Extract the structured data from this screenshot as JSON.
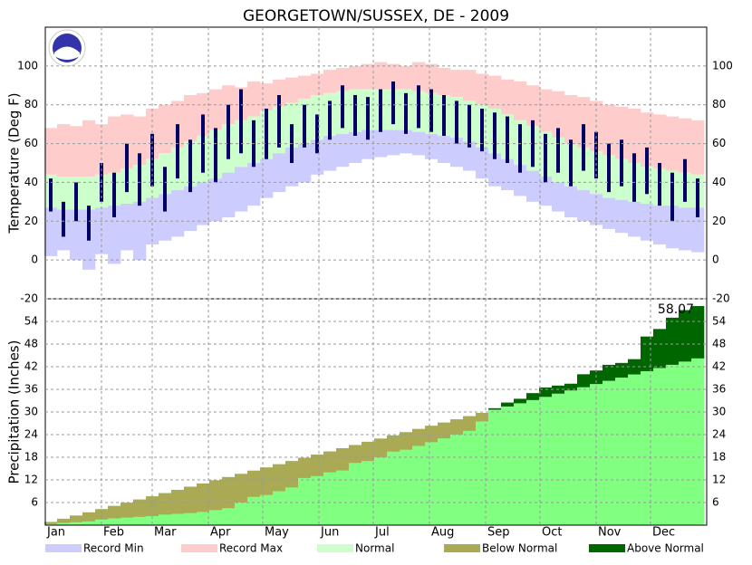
{
  "chart_data": [
    {
      "type": "range",
      "title": "GEORGETOWN/SUSSEX, DE - 2009",
      "y_label": "Temperature (Deg F)",
      "x": [
        4,
        11,
        18,
        25,
        32,
        39,
        46,
        53,
        60,
        67,
        74,
        81,
        88,
        95,
        102,
        109,
        116,
        123,
        130,
        137,
        144,
        151,
        158,
        165,
        172,
        179,
        186,
        193,
        200,
        207,
        214,
        221,
        228,
        235,
        242,
        249,
        256,
        263,
        270,
        277,
        284,
        291,
        298,
        305,
        312,
        319,
        326,
        333,
        340,
        347,
        354,
        361
      ],
      "xlim": [
        1,
        366
      ],
      "xticks": [
        1,
        32,
        60,
        91,
        121,
        152,
        182,
        213,
        244,
        274,
        305,
        335
      ],
      "ylim": [
        -20,
        120
      ],
      "yticks": [
        -20,
        0,
        20,
        40,
        60,
        80,
        100
      ],
      "record_max": [
        68,
        70,
        69,
        72,
        70,
        74,
        75,
        74,
        78,
        80,
        82,
        85,
        86,
        88,
        90,
        89,
        92,
        91,
        93,
        94,
        95,
        96,
        98,
        99,
        100,
        101,
        102,
        101,
        100,
        102,
        101,
        99,
        98,
        98,
        96,
        95,
        93,
        92,
        90,
        88,
        87,
        85,
        84,
        82,
        80,
        79,
        78,
        76,
        75,
        74,
        73,
        72
      ],
      "record_min": [
        2,
        5,
        0,
        -5,
        3,
        -2,
        5,
        0,
        8,
        10,
        12,
        15,
        18,
        20,
        22,
        25,
        28,
        32,
        35,
        38,
        40,
        44,
        46,
        48,
        50,
        52,
        53,
        54,
        55,
        54,
        52,
        50,
        48,
        46,
        42,
        38,
        36,
        33,
        30,
        28,
        25,
        22,
        20,
        18,
        16,
        14,
        12,
        10,
        8,
        6,
        5,
        4
      ],
      "normal_high": [
        44,
        43,
        43,
        43,
        44,
        45,
        47,
        49,
        52,
        55,
        58,
        61,
        64,
        67,
        70,
        72,
        74,
        77,
        79,
        81,
        83,
        85,
        86,
        87,
        88,
        88,
        88,
        88,
        88,
        87,
        86,
        85,
        84,
        82,
        80,
        78,
        75,
        72,
        69,
        66,
        63,
        60,
        58,
        56,
        54,
        52,
        50,
        48,
        47,
        46,
        45,
        44
      ],
      "normal_low": [
        27,
        26,
        26,
        26,
        27,
        28,
        29,
        30,
        32,
        34,
        36,
        38,
        40,
        42,
        45,
        48,
        50,
        52,
        55,
        58,
        60,
        62,
        64,
        65,
        66,
        67,
        67,
        67,
        67,
        66,
        65,
        64,
        63,
        61,
        58,
        55,
        52,
        49,
        46,
        43,
        40,
        38,
        36,
        34,
        32,
        31,
        30,
        29,
        28,
        28,
        27,
        27
      ],
      "observed_high": [
        42,
        30,
        40,
        28,
        50,
        45,
        60,
        55,
        65,
        48,
        70,
        62,
        75,
        68,
        80,
        88,
        72,
        78,
        85,
        70,
        80,
        75,
        82,
        90,
        85,
        84,
        88,
        92,
        86,
        90,
        88,
        85,
        82,
        80,
        78,
        76,
        74,
        70,
        72,
        65,
        68,
        62,
        70,
        66,
        60,
        62,
        55,
        58,
        50,
        45,
        52,
        42
      ],
      "observed_low": [
        25,
        12,
        20,
        10,
        30,
        22,
        35,
        28,
        38,
        25,
        42,
        35,
        45,
        40,
        52,
        55,
        48,
        52,
        58,
        50,
        58,
        55,
        62,
        68,
        64,
        62,
        66,
        70,
        65,
        68,
        66,
        64,
        60,
        58,
        56,
        52,
        50,
        45,
        48,
        40,
        45,
        38,
        46,
        42,
        35,
        38,
        30,
        34,
        28,
        20,
        30,
        22
      ],
      "observed_color": "#000066",
      "grid": true
    },
    {
      "type": "area",
      "y_label": "Precipitation (Inches)",
      "annotation": "58.07",
      "x": [
        4,
        11,
        18,
        25,
        32,
        39,
        46,
        53,
        60,
        67,
        74,
        81,
        88,
        95,
        102,
        109,
        116,
        123,
        130,
        137,
        144,
        151,
        158,
        165,
        172,
        179,
        186,
        193,
        200,
        207,
        214,
        221,
        228,
        235,
        242,
        249,
        256,
        263,
        270,
        277,
        284,
        291,
        298,
        305,
        312,
        319,
        326,
        333,
        340,
        347,
        354,
        361
      ],
      "xlim": [
        1,
        366
      ],
      "xticks": [
        {
          "value": 1,
          "label": "Jan"
        },
        {
          "value": 32,
          "label": "Feb"
        },
        {
          "value": 60,
          "label": "Mar"
        },
        {
          "value": 91,
          "label": "Apr"
        },
        {
          "value": 121,
          "label": "May"
        },
        {
          "value": 152,
          "label": "Jun"
        },
        {
          "value": 182,
          "label": "Jul"
        },
        {
          "value": 213,
          "label": "Aug"
        },
        {
          "value": 244,
          "label": "Sep"
        },
        {
          "value": 274,
          "label": "Oct"
        },
        {
          "value": 305,
          "label": "Nov"
        },
        {
          "value": 335,
          "label": "Dec"
        }
      ],
      "ylim": [
        0,
        60
      ],
      "yticks": [
        6,
        12,
        18,
        24,
        30,
        36,
        42,
        48,
        54
      ],
      "normal": [
        0.85,
        1.7,
        2.55,
        3.4,
        4.25,
        5.1,
        5.95,
        6.8,
        7.65,
        8.5,
        9.35,
        10.2,
        11.05,
        11.9,
        12.75,
        13.6,
        14.45,
        15.3,
        16.15,
        17,
        17.85,
        18.7,
        19.55,
        20.4,
        21.25,
        22.1,
        22.95,
        23.8,
        24.65,
        25.5,
        26.35,
        27.2,
        28.05,
        28.9,
        29.75,
        30.6,
        31.45,
        32.3,
        33.15,
        34,
        34.85,
        35.7,
        36.55,
        37.4,
        38.25,
        39.1,
        39.95,
        40.8,
        41.65,
        42.5,
        43.35,
        44.2
      ],
      "observed": [
        0.3,
        0.6,
        0.8,
        1.0,
        1.5,
        1.8,
        2.0,
        2.2,
        2.4,
        2.8,
        3.0,
        3.2,
        3.5,
        4.0,
        4.5,
        6.0,
        7.5,
        8.0,
        9.0,
        10.0,
        12.5,
        13.0,
        14.0,
        14.5,
        16.5,
        17.0,
        18.0,
        19.5,
        20.0,
        21.0,
        22.0,
        23.0,
        24.0,
        25.0,
        27.5,
        31.0,
        32.5,
        33.5,
        35.0,
        36.5,
        37.0,
        37.5,
        40.0,
        41.0,
        42.5,
        43.0,
        44.0,
        50.0,
        52.0,
        55.0,
        57.0,
        58.07
      ],
      "normal_color": "#80ff80",
      "grid": true
    }
  ],
  "legend": [
    {
      "name": "Record Min",
      "color": "#ccccff"
    },
    {
      "name": "Record Max",
      "color": "#ffcccc"
    },
    {
      "name": "Normal",
      "color": "#ccffcc"
    },
    {
      "name": "Below Normal",
      "color": "#aaaa55"
    },
    {
      "name": "Above Normal",
      "color": "#006600"
    }
  ]
}
